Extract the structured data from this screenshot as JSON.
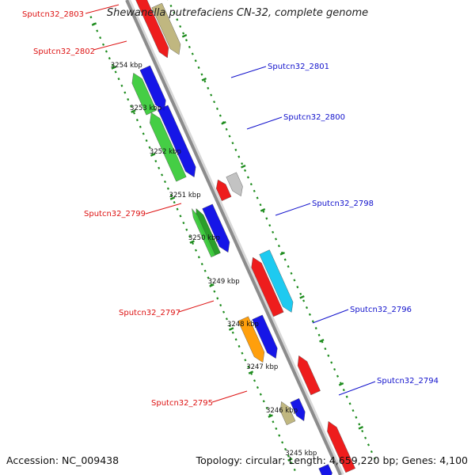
{
  "header": {
    "title": "Shewanella putrefaciens CN-32, complete genome"
  },
  "footer": {
    "accession": "Accession: NC_009438",
    "summary": "Topology: circular; Length: 4,659,220 bp; Genes: 4,100"
  },
  "colors": {
    "backbone": "#8c8c8c",
    "tick": "#1e8c1e",
    "minus_label": "#dd1111",
    "plus_label": "#1111cc",
    "blue": "#0a0ae6",
    "red": "#ee1111",
    "green": "#3ccc3c",
    "dark_green": "#1f9a1f",
    "khaki": "#bdb47a",
    "gray": "#c0c0c0",
    "cyan": "#12c8f0",
    "orange": "#ff9a00"
  },
  "kbp_labels": [
    "3254 kbp",
    "3253 kbp",
    "3252 kbp",
    "3251 kbp",
    "3250 kbp",
    "3249 kbp",
    "3248 kbp",
    "3247 kbp",
    "3246 kbp",
    "3245 kbp"
  ],
  "gene_labels": [
    {
      "text": "Sputcn32_2803",
      "side": "minus"
    },
    {
      "text": "Sputcn32_2802",
      "side": "minus"
    },
    {
      "text": "Sputcn32_2801",
      "side": "plus"
    },
    {
      "text": "Sputcn32_2800",
      "side": "plus"
    },
    {
      "text": "Sputcn32_2799",
      "side": "minus"
    },
    {
      "text": "Sputcn32_2798",
      "side": "plus"
    },
    {
      "text": "Sputcn32_2797",
      "side": "minus"
    },
    {
      "text": "Sputcn32_2796",
      "side": "plus"
    },
    {
      "text": "Sputcn32_2795",
      "side": "minus"
    },
    {
      "text": "Sputcn32_2794",
      "side": "plus"
    }
  ]
}
